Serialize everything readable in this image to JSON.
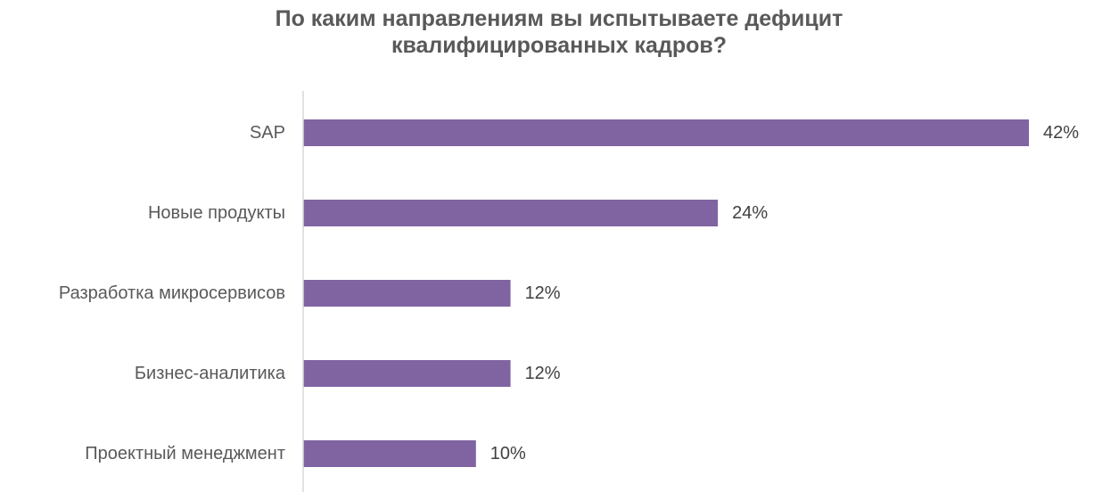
{
  "chart_data": {
    "type": "bar",
    "orientation": "horizontal",
    "title_lines": [
      "По каким направлениям вы испытываете дефицит",
      "квалифицированных кадров?"
    ],
    "categories": [
      "SAP",
      "Новые продукты",
      "Разработка микросервисов",
      "Бизнес-аналитика",
      "Проектный менеджмент"
    ],
    "values": [
      42,
      24,
      12,
      12,
      10
    ],
    "value_labels": [
      "42%",
      "24%",
      "12%",
      "12%",
      "10%"
    ],
    "unit": "%",
    "xlim": [
      0,
      42
    ],
    "grid": false,
    "legend": "none",
    "bar_color": "#8064a2",
    "axis_color": "#d9d9d9"
  }
}
